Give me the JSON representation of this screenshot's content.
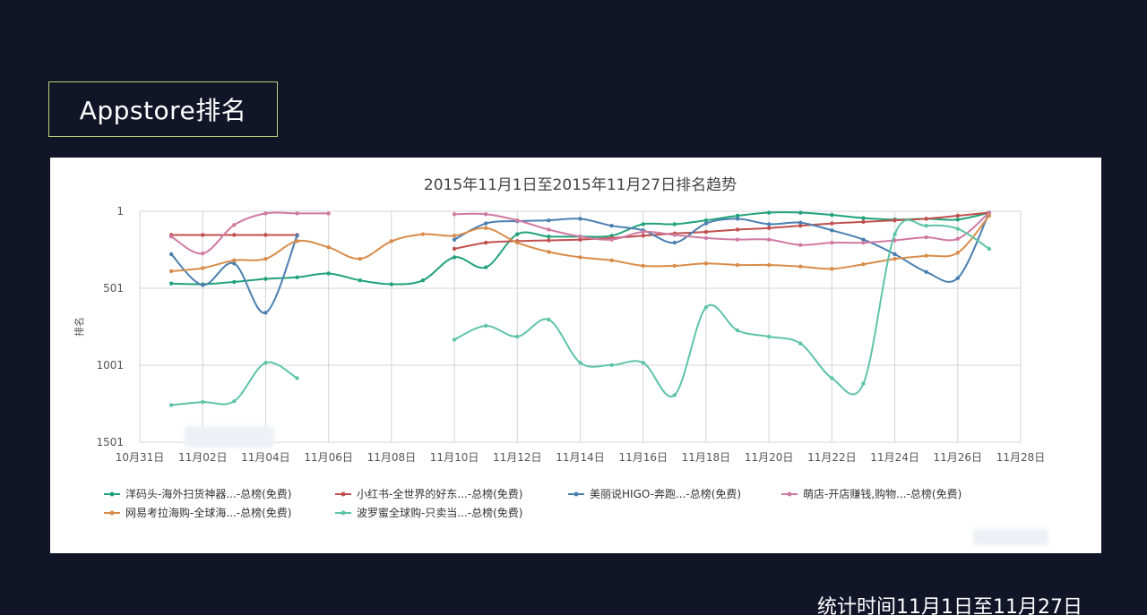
{
  "slide": {
    "heading": "Appstore排名",
    "footnote": "统计时间11月1日至11月27日"
  },
  "chart_data": {
    "type": "line",
    "title": "2015年11月1日至2015年11月27日排名趋势",
    "xlabel": "",
    "ylabel": "排名",
    "y_inverted": true,
    "ylim": [
      1501,
      1
    ],
    "yticks": [
      1,
      501,
      1001,
      1501
    ],
    "xlim": [
      0,
      28
    ],
    "xticks": [
      {
        "x": 0,
        "label": "10月31日"
      },
      {
        "x": 2,
        "label": "11月02日"
      },
      {
        "x": 4,
        "label": "11月04日"
      },
      {
        "x": 6,
        "label": "11月06日"
      },
      {
        "x": 8,
        "label": "11月08日"
      },
      {
        "x": 10,
        "label": "11月10日"
      },
      {
        "x": 12,
        "label": "11月12日"
      },
      {
        "x": 14,
        "label": "11月14日"
      },
      {
        "x": 16,
        "label": "11月16日"
      },
      {
        "x": 18,
        "label": "11月18日"
      },
      {
        "x": 20,
        "label": "11月20日"
      },
      {
        "x": 22,
        "label": "11月22日"
      },
      {
        "x": 24,
        "label": "11月24日"
      },
      {
        "x": 26,
        "label": "11月26日"
      },
      {
        "x": 28,
        "label": "11月28日"
      }
    ],
    "grid": true,
    "legend_position": "bottom",
    "series": [
      {
        "name": "洋码头-海外扫货神器...-总榜(免费)",
        "color": "#22a27a",
        "x": [
          1,
          2,
          3,
          4,
          5,
          6,
          7,
          8,
          9,
          10,
          11,
          12,
          13,
          14,
          15,
          16,
          17,
          18,
          19,
          20,
          21,
          22,
          23,
          24,
          25,
          26,
          27
        ],
        "y": [
          470,
          475,
          460,
          440,
          430,
          405,
          450,
          475,
          450,
          300,
          365,
          150,
          165,
          165,
          160,
          85,
          85,
          60,
          30,
          10,
          10,
          25,
          45,
          55,
          50,
          55,
          10
        ]
      },
      {
        "name": "小红书-全世界的好东...-总榜(免费)",
        "color": "#c0504d",
        "segments": [
          {
            "x": [
              1,
              2,
              3,
              4,
              5
            ],
            "y": [
              155,
              155,
              155,
              155,
              155
            ]
          },
          {
            "x": [
              10,
              11,
              12,
              13,
              14,
              15,
              16,
              17,
              18,
              19,
              20,
              21,
              22,
              23,
              24,
              25,
              26,
              27
            ],
            "y": [
              245,
              205,
              195,
              190,
              185,
              175,
              160,
              145,
              135,
              120,
              110,
              95,
              80,
              70,
              60,
              50,
              30,
              10
            ]
          }
        ]
      },
      {
        "name": "美丽说HIGO-奔跑...-总榜(免费)",
        "color": "#4a7fb0",
        "segments": [
          {
            "x": [
              1,
              2,
              3,
              4,
              5
            ],
            "y": [
              280,
              480,
              340,
              660,
              160
            ]
          },
          {
            "x": [
              10,
              11,
              12,
              13,
              14,
              15,
              16,
              17,
              18,
              19,
              20,
              21,
              22,
              23,
              24,
              25,
              26,
              27
            ],
            "y": [
              185,
              80,
              65,
              60,
              50,
              95,
              125,
              205,
              80,
              50,
              85,
              75,
              125,
              185,
              280,
              395,
              435,
              10
            ]
          }
        ]
      },
      {
        "name": "萌店-开店赚钱,购物...-总榜(免费)",
        "color": "#cf7aa1",
        "segments": [
          {
            "x": [
              1,
              2,
              3,
              4,
              5,
              6
            ],
            "y": [
              165,
              275,
              90,
              15,
              15,
              15
            ]
          },
          {
            "x": [
              10,
              11,
              12,
              13,
              14,
              15,
              16,
              17,
              18,
              19,
              20,
              21,
              22,
              23,
              24,
              25,
              26,
              27
            ],
            "y": [
              20,
              20,
              60,
              120,
              165,
              185,
              135,
              155,
              175,
              185,
              185,
              220,
              205,
              205,
              190,
              170,
              180,
              10
            ]
          }
        ]
      },
      {
        "name": "网易考拉海购-全球海...-总榜(免费)",
        "color": "#d98c4a",
        "x": [
          1,
          2,
          3,
          4,
          5,
          6,
          7,
          8,
          9,
          10,
          11,
          12,
          13,
          14,
          15,
          16,
          17,
          18,
          19,
          20,
          21,
          22,
          23,
          24,
          25,
          26,
          27
        ],
        "y": [
          390,
          370,
          320,
          310,
          195,
          235,
          310,
          195,
          150,
          160,
          110,
          205,
          265,
          300,
          320,
          355,
          355,
          340,
          350,
          350,
          360,
          375,
          345,
          310,
          290,
          270,
          30
        ]
      },
      {
        "name": "波罗蜜全球购-只卖当...-总榜(免费)",
        "color": "#5ec4a6",
        "segments": [
          {
            "x": [
              1,
              2,
              3,
              4,
              5
            ],
            "y": [
              1260,
              1240,
              1235,
              985,
              1085
            ]
          },
          {
            "x": [
              10,
              11,
              12,
              13,
              14,
              15,
              16,
              17,
              18,
              19,
              20,
              21,
              22,
              23,
              24,
              25,
              26,
              27
            ],
            "y": [
              835,
              745,
              815,
              705,
              985,
              1000,
              985,
              1195,
              625,
              775,
              815,
              860,
              1085,
              1120,
              150,
              95,
              115,
              245
            ]
          }
        ]
      }
    ]
  }
}
